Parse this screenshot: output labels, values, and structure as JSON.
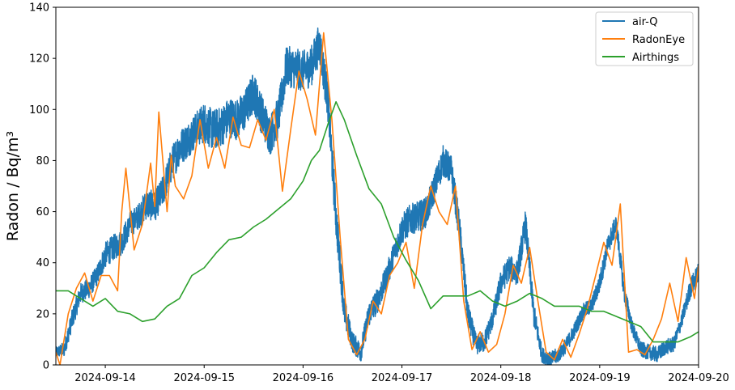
{
  "chart_data": {
    "type": "line",
    "title": "",
    "xlabel": "",
    "ylabel": "Radon / Bq/m³",
    "xlim": [
      "2024-09-13 12:00",
      "2024-09-20 00:00"
    ],
    "ylim": [
      0,
      140
    ],
    "x_ticks": [
      "2024-09-14",
      "2024-09-15",
      "2024-09-16",
      "2024-09-17",
      "2024-09-18",
      "2024-09-19",
      "2024-09-20"
    ],
    "y_ticks": [
      "0",
      "20",
      "40",
      "60",
      "80",
      "100",
      "120",
      "140"
    ],
    "grid": false,
    "legend_position": "top-right",
    "series": [
      {
        "name": "air-Q",
        "color": "#1f77b4",
        "noisy": true,
        "x": [
          "2024-09-13 12:00",
          "2024-09-13 14:00",
          "2024-09-13 16:00",
          "2024-09-13 18:00",
          "2024-09-13 20:00",
          "2024-09-13 22:00",
          "2024-09-14 00:00",
          "2024-09-14 02:00",
          "2024-09-14 04:00",
          "2024-09-14 06:00",
          "2024-09-14 08:00",
          "2024-09-14 10:00",
          "2024-09-14 12:00",
          "2024-09-14 14:00",
          "2024-09-14 16:00",
          "2024-09-14 18:00",
          "2024-09-14 20:00",
          "2024-09-14 22:00",
          "2024-09-15 00:00",
          "2024-09-15 02:00",
          "2024-09-15 04:00",
          "2024-09-15 06:00",
          "2024-09-15 08:00",
          "2024-09-15 10:00",
          "2024-09-15 12:00",
          "2024-09-15 14:00",
          "2024-09-15 16:00",
          "2024-09-15 18:00",
          "2024-09-15 20:00",
          "2024-09-15 22:00",
          "2024-09-16 00:00",
          "2024-09-16 02:00",
          "2024-09-16 04:00",
          "2024-09-16 06:00",
          "2024-09-16 08:00",
          "2024-09-16 10:00",
          "2024-09-16 12:00",
          "2024-09-16 14:00",
          "2024-09-16 16:00",
          "2024-09-16 18:00",
          "2024-09-16 20:00",
          "2024-09-16 22:00",
          "2024-09-17 00:00",
          "2024-09-17 02:00",
          "2024-09-17 04:00",
          "2024-09-17 06:00",
          "2024-09-17 08:00",
          "2024-09-17 10:00",
          "2024-09-17 12:00",
          "2024-09-17 14:00",
          "2024-09-17 16:00",
          "2024-09-17 18:00",
          "2024-09-17 20:00",
          "2024-09-17 22:00",
          "2024-09-18 00:00",
          "2024-09-18 02:00",
          "2024-09-18 04:00",
          "2024-09-18 06:00",
          "2024-09-18 08:00",
          "2024-09-18 10:00",
          "2024-09-18 12:00",
          "2024-09-18 14:00",
          "2024-09-18 16:00",
          "2024-09-18 18:00",
          "2024-09-18 20:00",
          "2024-09-18 22:00",
          "2024-09-19 00:00",
          "2024-09-19 02:00",
          "2024-09-19 04:00",
          "2024-09-19 06:00",
          "2024-09-19 08:00",
          "2024-09-19 10:00",
          "2024-09-19 12:00",
          "2024-09-19 14:00",
          "2024-09-19 16:00",
          "2024-09-19 18:00",
          "2024-09-19 20:00",
          "2024-09-19 22:00",
          "2024-09-20 00:00"
        ],
        "y": [
          5,
          6,
          18,
          28,
          30,
          35,
          43,
          46,
          48,
          55,
          58,
          63,
          62,
          68,
          78,
          85,
          88,
          92,
          95,
          92,
          93,
          97,
          96,
          100,
          107,
          98,
          90,
          97,
          117,
          116,
          115,
          117,
          126,
          104,
          58,
          21,
          9,
          5,
          20,
          25,
          33,
          43,
          53,
          57,
          58,
          60,
          70,
          80,
          76,
          53,
          20,
          8,
          9,
          18,
          32,
          38,
          36,
          55,
          20,
          4,
          2,
          4,
          8,
          14,
          21,
          23,
          32,
          47,
          55,
          28,
          14,
          6,
          5,
          4,
          7,
          8,
          18,
          30,
          36
        ],
        "noise": [
          2,
          3,
          4,
          4,
          4,
          4,
          5,
          5,
          5,
          5,
          5,
          6,
          6,
          6,
          7,
          7,
          7,
          7,
          8,
          8,
          8,
          8,
          8,
          8,
          8,
          8,
          8,
          8,
          8,
          8,
          8,
          8,
          8,
          8,
          8,
          6,
          4,
          4,
          5,
          5,
          5,
          5,
          6,
          6,
          6,
          6,
          6,
          6,
          6,
          6,
          5,
          4,
          4,
          4,
          5,
          5,
          5,
          6,
          5,
          3,
          3,
          3,
          3,
          3,
          3,
          3,
          4,
          4,
          4,
          4,
          3,
          3,
          3,
          3,
          3,
          3,
          3,
          4,
          4
        ]
      },
      {
        "name": "RadonEye",
        "color": "#ff7f0e",
        "x": [
          "2024-09-13 12:00",
          "2024-09-13 13:00",
          "2024-09-13 15:00",
          "2024-09-13 17:00",
          "2024-09-13 19:00",
          "2024-09-13 21:00",
          "2024-09-13 23:00",
          "2024-09-14 01:00",
          "2024-09-14 03:00",
          "2024-09-14 04:00",
          "2024-09-14 05:00",
          "2024-09-14 07:00",
          "2024-09-14 09:00",
          "2024-09-14 11:00",
          "2024-09-14 12:00",
          "2024-09-14 13:00",
          "2024-09-14 15:00",
          "2024-09-14 16:00",
          "2024-09-14 17:00",
          "2024-09-14 19:00",
          "2024-09-14 21:00",
          "2024-09-14 23:00",
          "2024-09-15 01:00",
          "2024-09-15 03:00",
          "2024-09-15 05:00",
          "2024-09-15 07:00",
          "2024-09-15 09:00",
          "2024-09-15 11:00",
          "2024-09-15 13:00",
          "2024-09-15 15:00",
          "2024-09-15 17:00",
          "2024-09-15 19:00",
          "2024-09-15 21:00",
          "2024-09-15 23:00",
          "2024-09-16 01:00",
          "2024-09-16 03:00",
          "2024-09-16 05:00",
          "2024-09-16 07:00",
          "2024-09-16 09:00",
          "2024-09-16 11:00",
          "2024-09-16 13:00",
          "2024-09-16 15:00",
          "2024-09-16 17:00",
          "2024-09-16 19:00",
          "2024-09-16 21:00",
          "2024-09-16 23:00",
          "2024-09-17 01:00",
          "2024-09-17 03:00",
          "2024-09-17 05:00",
          "2024-09-17 07:00",
          "2024-09-17 09:00",
          "2024-09-17 11:00",
          "2024-09-17 13:00",
          "2024-09-17 15:00",
          "2024-09-17 17:00",
          "2024-09-17 19:00",
          "2024-09-17 21:00",
          "2024-09-17 23:00",
          "2024-09-18 01:00",
          "2024-09-18 03:00",
          "2024-09-18 05:00",
          "2024-09-18 07:00",
          "2024-09-18 09:00",
          "2024-09-18 11:00",
          "2024-09-18 13:00",
          "2024-09-18 15:00",
          "2024-09-18 17:00",
          "2024-09-18 19:00",
          "2024-09-18 21:00",
          "2024-09-18 23:00",
          "2024-09-19 01:00",
          "2024-09-19 03:00",
          "2024-09-19 05:00",
          "2024-09-19 07:00",
          "2024-09-19 09:00",
          "2024-09-19 11:00",
          "2024-09-19 13:00",
          "2024-09-19 15:00",
          "2024-09-19 17:00",
          "2024-09-19 19:00",
          "2024-09-19 21:00",
          "2024-09-19 23:00",
          "2024-09-20 00:00"
        ],
        "y": [
          5,
          0,
          20,
          30,
          36,
          25,
          35,
          35,
          29,
          60,
          77,
          45,
          55,
          79,
          62,
          99,
          60,
          82,
          70,
          65,
          74,
          96,
          77,
          89,
          77,
          97,
          86,
          85,
          96,
          88,
          100,
          68,
          92,
          115,
          104,
          90,
          130,
          96,
          50,
          10,
          4,
          10,
          25,
          20,
          35,
          40,
          48,
          30,
          55,
          70,
          60,
          55,
          70,
          25,
          6,
          13,
          5,
          8,
          20,
          39,
          32,
          46,
          25,
          5,
          2,
          10,
          3,
          12,
          22,
          35,
          48,
          39,
          63,
          5,
          6,
          4,
          10,
          18,
          32,
          17,
          42,
          26,
          39
        ],
        "noisy": false
      },
      {
        "name": "Airthings",
        "color": "#2ca02c",
        "x": [
          "2024-09-13 12:00",
          "2024-09-13 15:00",
          "2024-09-13 18:00",
          "2024-09-13 21:00",
          "2024-09-14 00:00",
          "2024-09-14 03:00",
          "2024-09-14 06:00",
          "2024-09-14 09:00",
          "2024-09-14 12:00",
          "2024-09-14 15:00",
          "2024-09-14 18:00",
          "2024-09-14 21:00",
          "2024-09-15 00:00",
          "2024-09-15 03:00",
          "2024-09-15 06:00",
          "2024-09-15 09:00",
          "2024-09-15 12:00",
          "2024-09-15 15:00",
          "2024-09-15 18:00",
          "2024-09-15 21:00",
          "2024-09-16 00:00",
          "2024-09-16 02:00",
          "2024-09-16 04:00",
          "2024-09-16 06:00",
          "2024-09-16 08:00",
          "2024-09-16 10:00",
          "2024-09-16 13:00",
          "2024-09-16 16:00",
          "2024-09-16 19:00",
          "2024-09-16 22:00",
          "2024-09-17 01:00",
          "2024-09-17 04:00",
          "2024-09-17 07:00",
          "2024-09-17 10:00",
          "2024-09-17 13:00",
          "2024-09-17 16:00",
          "2024-09-17 19:00",
          "2024-09-17 22:00",
          "2024-09-18 01:00",
          "2024-09-18 04:00",
          "2024-09-18 07:00",
          "2024-09-18 10:00",
          "2024-09-18 13:00",
          "2024-09-18 16:00",
          "2024-09-18 19:00",
          "2024-09-18 22:00",
          "2024-09-19 01:00",
          "2024-09-19 04:00",
          "2024-09-19 07:00",
          "2024-09-19 10:00",
          "2024-09-19 13:00",
          "2024-09-19 16:00",
          "2024-09-19 19:00",
          "2024-09-19 22:00",
          "2024-09-20 00:00"
        ],
        "y": [
          29,
          29,
          26,
          23,
          26,
          21,
          20,
          17,
          18,
          23,
          26,
          35,
          38,
          44,
          49,
          50,
          54,
          57,
          61,
          65,
          72,
          80,
          84,
          94,
          103,
          96,
          82,
          69,
          63,
          50,
          41,
          33,
          22,
          27,
          27,
          27,
          29,
          25,
          23,
          25,
          28,
          26,
          23,
          23,
          23,
          21,
          21,
          19,
          17,
          15,
          9,
          9,
          9,
          11,
          13
        ],
        "noisy": false
      }
    ]
  }
}
